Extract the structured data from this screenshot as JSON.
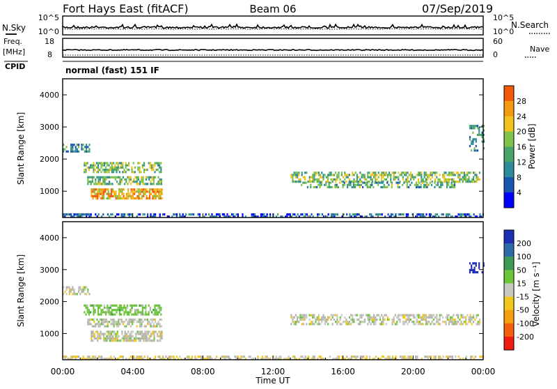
{
  "header": {
    "station": "Fort Hays East (fitACF)",
    "beam": "Beam 06",
    "date": "07/Sep/2019"
  },
  "sky_panel": {
    "left_label": "N.Sky",
    "right_label": "N.Search",
    "left_ticks": [
      "10^5",
      "10^0"
    ],
    "right_ticks": [
      "10^5",
      "10^0"
    ]
  },
  "freq_panel": {
    "left_label_1": "Freq.",
    "left_label_2": "[MHz]",
    "right_label": "Nave",
    "left_ticks": [
      "18",
      "8"
    ],
    "right_ticks": [
      "60",
      "0"
    ]
  },
  "cpid": {
    "label": "CPID",
    "mode": "normal (fast) 151 IF"
  },
  "x_axis": {
    "label": "Time UT",
    "ticks": [
      "00:00",
      "04:00",
      "08:00",
      "12:00",
      "16:00",
      "20:00",
      "00:00"
    ]
  },
  "power_panel": {
    "ylabel": "Slant Range [km]",
    "yticks": [
      "1000",
      "2000",
      "3000",
      "4000"
    ],
    "colorbar_label": "Power [dB]",
    "colorbar_ticks": [
      "4",
      "8",
      "12",
      "16",
      "20",
      "24",
      "28"
    ],
    "colors": [
      "#0000ff",
      "#1a55b0",
      "#2f8a9a",
      "#4aa36a",
      "#7fc24a",
      "#f2c21c",
      "#f59a10",
      "#f05a0a",
      "#ee1c10"
    ]
  },
  "velocity_panel": {
    "ylabel": "Slant Range [km]",
    "yticks": [
      "1000",
      "2000",
      "3000",
      "4000"
    ],
    "colorbar_label": "Velocity [m s⁻¹]",
    "colorbar_ticks": [
      "200",
      "100",
      "50",
      "15",
      "-15",
      "-50",
      "-100",
      "-200"
    ],
    "colors": [
      "#1c2eb5",
      "#2e6aa8",
      "#3c9a55",
      "#6cc43a",
      "#c8c8c0",
      "#f2c81c",
      "#f6a010",
      "#f26010",
      "#ee1c10"
    ],
    "ground_scatter_color": "#b4b4a8"
  },
  "chart_data": [
    {
      "type": "heatmap",
      "title": "Power",
      "xlabel": "Time UT",
      "ylabel": "Slant Range [km]",
      "x_range_hours": [
        0,
        24
      ],
      "ylim": [
        180,
        4500
      ],
      "colorbar_label": "Power [dB]",
      "color_range_db": [
        0,
        32
      ],
      "echo_regions": [
        {
          "t_start": 0.0,
          "t_end": 24.0,
          "r_center": 300,
          "r_half": 60,
          "value": 6,
          "density": 0.55
        },
        {
          "t_start": 0.0,
          "t_end": 1.5,
          "r_center": 2400,
          "r_half": 130,
          "value": 10,
          "density": 0.55
        },
        {
          "t_start": 1.2,
          "t_end": 5.6,
          "r_center": 1780,
          "r_half": 150,
          "value": 15,
          "density": 0.6
        },
        {
          "t_start": 1.4,
          "t_end": 5.6,
          "r_center": 1380,
          "r_half": 120,
          "value": 14,
          "density": 0.6
        },
        {
          "t_start": 1.6,
          "t_end": 5.7,
          "r_center": 950,
          "r_half": 140,
          "value": 22,
          "density": 0.75
        },
        {
          "t_start": 13.0,
          "t_end": 23.8,
          "r_center": 1500,
          "r_half": 170,
          "value": 15,
          "density": 0.55
        },
        {
          "t_start": 13.5,
          "t_end": 22.5,
          "r_center": 1250,
          "r_half": 90,
          "value": 12,
          "density": 0.5
        },
        {
          "t_start": 23.2,
          "t_end": 24.0,
          "r_center": 2700,
          "r_half": 400,
          "value": 11,
          "density": 0.45
        }
      ]
    },
    {
      "type": "heatmap",
      "title": "Velocity",
      "xlabel": "Time UT",
      "ylabel": "Slant Range [km]",
      "x_range_hours": [
        0,
        24
      ],
      "ylim": [
        180,
        4500
      ],
      "colorbar_label": "Velocity [m s⁻¹]",
      "color_range_ms": [
        -200,
        200
      ],
      "echo_regions": [
        {
          "t_start": 0.0,
          "t_end": 24.0,
          "r_center": 300,
          "r_half": 60,
          "value": -20,
          "density": 0.55
        },
        {
          "t_start": 0.0,
          "t_end": 1.5,
          "r_center": 2400,
          "r_half": 130,
          "value": 0,
          "density": 0.55
        },
        {
          "t_start": 1.2,
          "t_end": 5.6,
          "r_center": 1780,
          "r_half": 150,
          "value": 40,
          "density": 0.6
        },
        {
          "t_start": 1.4,
          "t_end": 5.6,
          "r_center": 1380,
          "r_half": 120,
          "value": 0,
          "density": 0.6
        },
        {
          "t_start": 1.6,
          "t_end": 5.7,
          "r_center": 950,
          "r_half": 140,
          "value": 0,
          "density": 0.75
        },
        {
          "t_start": 13.0,
          "t_end": 23.8,
          "r_center": 1500,
          "r_half": 170,
          "value": 0,
          "density": 0.55
        },
        {
          "t_start": 23.2,
          "t_end": 24.0,
          "r_center": 3100,
          "r_half": 150,
          "value": 180,
          "density": 0.45
        }
      ]
    }
  ]
}
